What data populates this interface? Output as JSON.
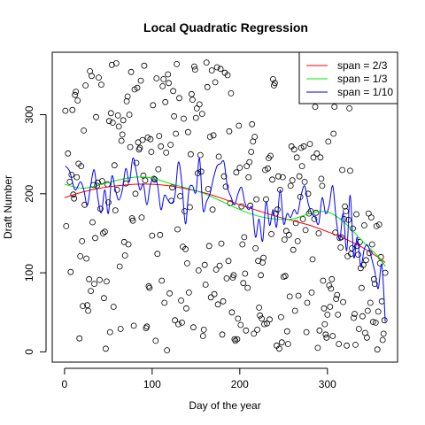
{
  "chart_data": {
    "type": "scatter",
    "title": "Local Quadratic Regression",
    "xlabel": "Day of the year",
    "ylabel": "Draft Number",
    "xlim": [
      -14,
      380
    ],
    "ylim": [
      -13,
      379
    ],
    "xticks": [
      0,
      100,
      200,
      300
    ],
    "yticks": [
      0,
      100,
      200,
      300
    ],
    "points_approx": true,
    "points": [
      [
        1,
        305
      ],
      [
        2,
        159
      ],
      [
        4,
        251
      ],
      [
        6,
        215
      ],
      [
        7,
        101
      ],
      [
        8,
        224
      ],
      [
        9,
        306
      ],
      [
        10,
        199
      ],
      [
        11,
        194
      ],
      [
        12,
        325
      ],
      [
        13,
        329
      ],
      [
        14,
        221
      ],
      [
        15,
        318
      ],
      [
        16,
        238
      ],
      [
        17,
        17
      ],
      [
        18,
        121
      ],
      [
        19,
        235
      ],
      [
        20,
        140
      ],
      [
        21,
        58
      ],
      [
        22,
        280
      ],
      [
        23,
        186
      ],
      [
        24,
        337
      ],
      [
        25,
        118
      ],
      [
        26,
        59
      ],
      [
        27,
        52
      ],
      [
        28,
        92
      ],
      [
        29,
        355
      ],
      [
        30,
        77
      ],
      [
        31,
        349
      ],
      [
        32,
        164
      ],
      [
        33,
        211
      ],
      [
        34,
        86
      ],
      [
        35,
        144
      ],
      [
        36,
        297
      ],
      [
        37,
        210
      ],
      [
        38,
        214
      ],
      [
        39,
        347
      ],
      [
        40,
        91
      ],
      [
        41,
        181
      ],
      [
        42,
        338
      ],
      [
        43,
        216
      ],
      [
        44,
        150
      ],
      [
        45,
        68
      ],
      [
        46,
        152
      ],
      [
        47,
        4
      ],
      [
        48,
        89
      ],
      [
        49,
        212
      ],
      [
        50,
        189
      ],
      [
        51,
        292
      ],
      [
        52,
        25
      ],
      [
        53,
        302
      ],
      [
        54,
        363
      ],
      [
        55,
        290
      ],
      [
        56,
        57
      ],
      [
        57,
        236
      ],
      [
        58,
        179
      ],
      [
        59,
        365
      ],
      [
        60,
        205
      ],
      [
        61,
        299
      ],
      [
        62,
        285
      ],
      [
        63,
        108
      ],
      [
        64,
        29
      ],
      [
        65,
        267
      ],
      [
        66,
        275
      ],
      [
        67,
        293
      ],
      [
        68,
        139
      ],
      [
        69,
        122
      ],
      [
        70,
        213
      ],
      [
        71,
        317
      ],
      [
        72,
        323
      ],
      [
        73,
        136
      ],
      [
        74,
        300
      ],
      [
        75,
        259
      ],
      [
        76,
        354
      ],
      [
        77,
        169
      ],
      [
        78,
        166
      ],
      [
        79,
        33
      ],
      [
        80,
        332
      ],
      [
        81,
        200
      ],
      [
        82,
        239
      ],
      [
        83,
        334
      ],
      [
        84,
        265
      ],
      [
        85,
        256
      ],
      [
        86,
        258
      ],
      [
        87,
        343
      ],
      [
        88,
        170
      ],
      [
        89,
        268
      ],
      [
        90,
        223
      ],
      [
        91,
        362
      ],
      [
        92,
        217
      ],
      [
        93,
        30
      ],
      [
        94,
        32
      ],
      [
        95,
        271
      ],
      [
        96,
        83
      ],
      [
        97,
        81
      ],
      [
        98,
        269
      ],
      [
        99,
        253
      ],
      [
        100,
        147
      ],
      [
        101,
        312
      ],
      [
        102,
        219
      ],
      [
        103,
        218
      ],
      [
        104,
        14
      ],
      [
        105,
        346
      ],
      [
        106,
        124
      ],
      [
        107,
        231
      ],
      [
        108,
        273
      ],
      [
        109,
        148
      ],
      [
        110,
        260
      ],
      [
        111,
        90
      ],
      [
        112,
        336
      ],
      [
        113,
        345
      ],
      [
        114,
        62
      ],
      [
        115,
        316
      ],
      [
        116,
        252
      ],
      [
        117,
        2
      ],
      [
        118,
        351
      ],
      [
        119,
        340
      ],
      [
        120,
        74
      ],
      [
        121,
        262
      ],
      [
        122,
        191
      ],
      [
        123,
        208
      ],
      [
        124,
        330
      ],
      [
        125,
        298
      ],
      [
        126,
        40
      ],
      [
        127,
        276
      ],
      [
        128,
        364
      ],
      [
        129,
        155
      ],
      [
        130,
        35
      ],
      [
        131,
        321
      ],
      [
        132,
        197
      ],
      [
        133,
        65
      ],
      [
        134,
        37
      ],
      [
        135,
        133
      ],
      [
        136,
        295
      ],
      [
        137,
        178
      ],
      [
        138,
        130
      ],
      [
        139,
        55
      ],
      [
        140,
        112
      ],
      [
        141,
        278
      ],
      [
        142,
        75
      ],
      [
        143,
        183
      ],
      [
        144,
        250
      ],
      [
        145,
        326
      ],
      [
        146,
        319
      ],
      [
        147,
        31
      ],
      [
        148,
        361
      ],
      [
        149,
        357
      ],
      [
        150,
        296
      ],
      [
        151,
        308
      ],
      [
        152,
        226
      ],
      [
        153,
        103
      ],
      [
        154,
        313
      ],
      [
        155,
        249
      ],
      [
        156,
        228
      ],
      [
        157,
        301
      ],
      [
        158,
        20
      ],
      [
        159,
        28
      ],
      [
        160,
        110
      ],
      [
        161,
        85
      ],
      [
        162,
        366
      ],
      [
        163,
        335
      ],
      [
        164,
        206
      ],
      [
        165,
        134
      ],
      [
        166,
        272
      ],
      [
        167,
        69
      ],
      [
        168,
        356
      ],
      [
        169,
        180
      ],
      [
        170,
        274
      ],
      [
        171,
        73
      ],
      [
        172,
        341
      ],
      [
        173,
        104
      ],
      [
        174,
        360
      ],
      [
        175,
        60
      ],
      [
        176,
        247
      ],
      [
        177,
        109
      ],
      [
        178,
        358
      ],
      [
        179,
        137
      ],
      [
        180,
        22
      ],
      [
        181,
        64
      ],
      [
        182,
        222
      ],
      [
        183,
        353
      ],
      [
        184,
        209
      ],
      [
        185,
        93
      ],
      [
        186,
        350
      ],
      [
        187,
        115
      ],
      [
        188,
        279
      ],
      [
        189,
        188
      ],
      [
        190,
        327
      ],
      [
        191,
        50
      ],
      [
        192,
        94
      ],
      [
        193,
        97
      ],
      [
        194,
        16
      ],
      [
        195,
        14
      ],
      [
        196,
        227
      ],
      [
        197,
        16
      ],
      [
        198,
        42
      ],
      [
        199,
        286
      ],
      [
        200,
        233
      ],
      [
        201,
        34
      ],
      [
        202,
        184
      ],
      [
        203,
        136
      ],
      [
        204,
        87
      ],
      [
        205,
        145
      ],
      [
        206,
        99
      ],
      [
        207,
        27
      ],
      [
        208,
        235
      ],
      [
        209,
        81
      ],
      [
        210,
        221
      ],
      [
        211,
        240
      ],
      [
        212,
        185
      ],
      [
        213,
        253
      ],
      [
        214,
        288
      ],
      [
        215,
        266
      ],
      [
        216,
        23
      ],
      [
        217,
        272
      ],
      [
        218,
        131
      ],
      [
        219,
        193
      ],
      [
        220,
        28
      ],
      [
        221,
        115
      ],
      [
        222,
        56
      ],
      [
        223,
        46
      ],
      [
        224,
        97
      ],
      [
        225,
        42
      ],
      [
        226,
        113
      ],
      [
        227,
        119
      ],
      [
        228,
        35
      ],
      [
        229,
        230
      ],
      [
        230,
        193
      ],
      [
        231,
        36
      ],
      [
        232,
        232
      ],
      [
        233,
        245
      ],
      [
        234,
        41
      ],
      [
        235,
        248
      ],
      [
        236,
        149
      ],
      [
        237,
        218
      ],
      [
        238,
        345
      ],
      [
        239,
        337
      ],
      [
        240,
        340
      ],
      [
        241,
        175
      ],
      [
        242,
        8
      ],
      [
        243,
        180
      ],
      [
        244,
        222
      ],
      [
        245,
        4
      ],
      [
        246,
        205
      ],
      [
        247,
        44
      ],
      [
        248,
        12
      ],
      [
        249,
        221
      ],
      [
        250,
        95
      ],
      [
        251,
        142
      ],
      [
        252,
        96
      ],
      [
        253,
        153
      ],
      [
        254,
        26
      ],
      [
        255,
        10
      ],
      [
        256,
        148
      ],
      [
        257,
        70
      ],
      [
        258,
        210
      ],
      [
        259,
        260
      ],
      [
        260,
        217
      ],
      [
        261,
        129
      ],
      [
        262,
        256
      ],
      [
        263,
        52
      ],
      [
        264,
        163
      ],
      [
        265,
        246
      ],
      [
        266,
        140
      ],
      [
        267,
        71
      ],
      [
        268,
        222
      ],
      [
        269,
        196
      ],
      [
        270,
        258
      ],
      [
        271,
        235
      ],
      [
        272,
        168
      ],
      [
        273,
        260
      ],
      [
        274,
        215
      ],
      [
        275,
        154
      ],
      [
        276,
        25
      ],
      [
        277,
        62
      ],
      [
        278,
        200
      ],
      [
        279,
        175
      ],
      [
        280,
        263
      ],
      [
        281,
        178
      ],
      [
        282,
        75
      ],
      [
        283,
        117
      ],
      [
        284,
        246
      ],
      [
        285,
        168
      ],
      [
        286,
        310
      ],
      [
        287,
        176
      ],
      [
        288,
        251
      ],
      [
        289,
        5
      ],
      [
        290,
        150
      ],
      [
        291,
        27
      ],
      [
        292,
        246
      ],
      [
        293,
        219
      ],
      [
        294,
        210
      ],
      [
        295,
        90
      ],
      [
        296,
        55
      ],
      [
        297,
        35
      ],
      [
        298,
        22
      ],
      [
        299,
        18
      ],
      [
        300,
        47
      ],
      [
        301,
        266
      ],
      [
        302,
        84
      ],
      [
        303,
        57
      ],
      [
        304,
        80
      ],
      [
        305,
        92
      ],
      [
        306,
        20
      ],
      [
        307,
        276
      ],
      [
        308,
        310
      ],
      [
        309,
        151
      ],
      [
        310,
        67
      ],
      [
        311,
        72
      ],
      [
        312,
        47
      ],
      [
        313,
        10
      ],
      [
        314,
        144
      ],
      [
        315,
        132
      ],
      [
        316,
        145
      ],
      [
        317,
        230
      ],
      [
        318,
        63
      ],
      [
        319,
        168
      ],
      [
        320,
        184
      ],
      [
        321,
        178
      ],
      [
        322,
        8
      ],
      [
        323,
        121
      ],
      [
        324,
        167
      ],
      [
        325,
        308
      ],
      [
        326,
        229
      ],
      [
        327,
        124
      ],
      [
        328,
        131
      ],
      [
        329,
        156
      ],
      [
        330,
        43
      ],
      [
        331,
        48
      ],
      [
        332,
        9
      ],
      [
        333,
        174
      ],
      [
        334,
        134
      ],
      [
        335,
        123
      ],
      [
        336,
        29
      ],
      [
        337,
        139
      ],
      [
        338,
        106
      ],
      [
        339,
        81
      ],
      [
        340,
        45
      ],
      [
        341,
        110
      ],
      [
        342,
        160
      ],
      [
        343,
        24
      ],
      [
        344,
        116
      ],
      [
        345,
        18
      ],
      [
        346,
        52
      ],
      [
        347,
        175
      ],
      [
        348,
        125
      ],
      [
        349,
        62
      ],
      [
        350,
        170
      ],
      [
        351,
        136
      ],
      [
        352,
        38
      ],
      [
        353,
        92
      ],
      [
        354,
        86
      ],
      [
        355,
        37
      ],
      [
        356,
        159
      ],
      [
        357,
        3
      ],
      [
        358,
        51
      ],
      [
        359,
        161
      ],
      [
        360,
        112
      ],
      [
        361,
        120
      ],
      [
        362,
        64
      ],
      [
        363,
        15
      ],
      [
        364,
        23
      ],
      [
        365,
        40
      ],
      [
        366,
        100
      ]
    ],
    "series": [
      {
        "name": "span = 2/3",
        "color": "#ff0000",
        "x": [
          0,
          20,
          40,
          60,
          80,
          100,
          120,
          140,
          160,
          180,
          200,
          220,
          240,
          260,
          280,
          300,
          320,
          340,
          360,
          366
        ],
        "y": [
          195,
          202,
          207,
          210,
          212,
          212,
          210,
          206,
          201,
          194,
          186,
          179,
          172,
          166,
          160,
          152,
          143,
          132,
          118,
          113
        ]
      },
      {
        "name": "span = 1/3",
        "color": "#00ee00",
        "x": [
          0,
          20,
          40,
          60,
          80,
          100,
          120,
          140,
          160,
          180,
          200,
          220,
          240,
          260,
          280,
          300,
          320,
          340,
          360,
          366
        ],
        "y": [
          212,
          207,
          211,
          217,
          221,
          220,
          213,
          207,
          200,
          190,
          180,
          172,
          168,
          168,
          175,
          177,
          163,
          140,
          118,
          108
        ]
      },
      {
        "name": "span = 1/10",
        "color": "#0000ff",
        "x": [
          1,
          6,
          12,
          18,
          22,
          26,
          30,
          34,
          38,
          42,
          46,
          50,
          54,
          58,
          62,
          66,
          70,
          74,
          78,
          82,
          86,
          90,
          94,
          98,
          102,
          106,
          110,
          114,
          118,
          122,
          126,
          130,
          134,
          138,
          142,
          146,
          150,
          154,
          158,
          162,
          166,
          170,
          174,
          178,
          182,
          186,
          190,
          194,
          198,
          202,
          206,
          210,
          214,
          218,
          222,
          226,
          230,
          234,
          238,
          242,
          246,
          250,
          254,
          258,
          262,
          266,
          270,
          274,
          278,
          282,
          286,
          290,
          294,
          298,
          302,
          306,
          310,
          314,
          318,
          322,
          326,
          330,
          334,
          338,
          342,
          346,
          350,
          354,
          358,
          362,
          366
        ],
        "y": [
          235,
          228,
          205,
          215,
          205,
          185,
          212,
          230,
          195,
          176,
          205,
          175,
          222,
          205,
          192,
          205,
          232,
          215,
          245,
          228,
          205,
          212,
          186,
          212,
          218,
          212,
          180,
          198,
          192,
          188,
          198,
          240,
          212,
          162,
          205,
          210,
          202,
          245,
          180,
          190,
          200,
          220,
          235,
          238,
          240,
          208,
          196,
          186,
          200,
          208,
          188,
          180,
          182,
          145,
          168,
          140,
          190,
          160,
          180,
          158,
          205,
          162,
          175,
          170,
          180,
          175,
          198,
          210,
          188,
          175,
          170,
          162,
          195,
          175,
          185,
          210,
          168,
          142,
          175,
          128,
          198,
          120,
          145,
          108,
          130,
          135,
          120,
          102,
          80,
          110,
          38
        ]
      }
    ]
  }
}
